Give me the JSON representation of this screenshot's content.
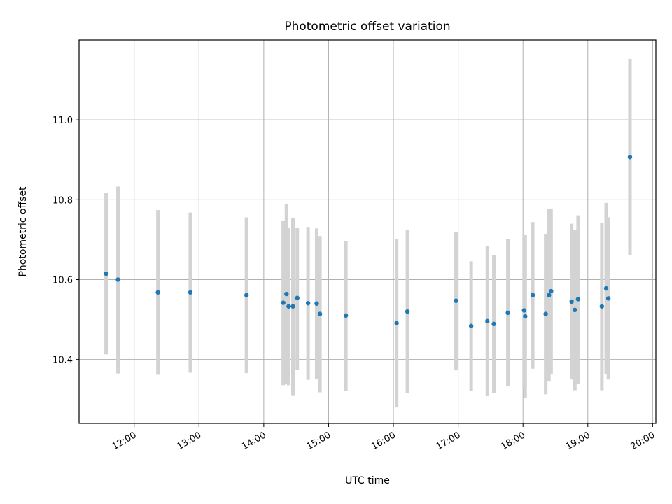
{
  "chart_data": {
    "type": "scatter",
    "title": "Photometric offset variation",
    "xlabel": "UTC time",
    "ylabel": "Photometric offset",
    "grid": true,
    "xlim": [
      "11:09",
      "20:03"
    ],
    "ylim": [
      10.24,
      11.2
    ],
    "x_ticks": [
      "12:00",
      "13:00",
      "14:00",
      "15:00",
      "16:00",
      "17:00",
      "18:00",
      "19:00",
      "20:00"
    ],
    "y_ticks": [
      10.4,
      10.6,
      10.8,
      11.0
    ],
    "y_tick_labels": [
      "10.4",
      "10.6",
      "10.8",
      "11.0"
    ],
    "colors": {
      "points": "#1f77b4",
      "errorbars": "#d3d3d3",
      "grid": "#b0b0b0"
    },
    "series": [
      {
        "points": [
          {
            "x": "11:34",
            "y": 10.615,
            "lo": 10.413,
            "hi": 10.817
          },
          {
            "x": "11:45",
            "y": 10.6,
            "lo": 10.365,
            "hi": 10.833
          },
          {
            "x": "12:22",
            "y": 10.568,
            "lo": 10.362,
            "hi": 10.774
          },
          {
            "x": "12:52",
            "y": 10.568,
            "lo": 10.367,
            "hi": 10.768
          },
          {
            "x": "13:44",
            "y": 10.561,
            "lo": 10.366,
            "hi": 10.756
          },
          {
            "x": "14:18",
            "y": 10.542,
            "lo": 10.336,
            "hi": 10.747
          },
          {
            "x": "14:21",
            "y": 10.564,
            "lo": 10.338,
            "hi": 10.789
          },
          {
            "x": "14:23",
            "y": 10.533,
            "lo": 10.336,
            "hi": 10.73
          },
          {
            "x": "14:27",
            "y": 10.533,
            "lo": 10.309,
            "hi": 10.754
          },
          {
            "x": "14:31",
            "y": 10.554,
            "lo": 10.375,
            "hi": 10.73
          },
          {
            "x": "14:41",
            "y": 10.541,
            "lo": 10.349,
            "hi": 10.732
          },
          {
            "x": "14:49",
            "y": 10.54,
            "lo": 10.352,
            "hi": 10.728
          },
          {
            "x": "14:52",
            "y": 10.514,
            "lo": 10.318,
            "hi": 10.709
          },
          {
            "x": "15:16",
            "y": 10.51,
            "lo": 10.322,
            "hi": 10.697
          },
          {
            "x": "16:03",
            "y": 10.491,
            "lo": 10.28,
            "hi": 10.701
          },
          {
            "x": "16:13",
            "y": 10.52,
            "lo": 10.317,
            "hi": 10.724
          },
          {
            "x": "16:58",
            "y": 10.547,
            "lo": 10.373,
            "hi": 10.72
          },
          {
            "x": "17:12",
            "y": 10.484,
            "lo": 10.322,
            "hi": 10.646
          },
          {
            "x": "17:27",
            "y": 10.496,
            "lo": 10.308,
            "hi": 10.684
          },
          {
            "x": "17:33",
            "y": 10.489,
            "lo": 10.317,
            "hi": 10.661
          },
          {
            "x": "17:46",
            "y": 10.517,
            "lo": 10.333,
            "hi": 10.701
          },
          {
            "x": "18:01",
            "y": 10.523,
            "lo": 10.332,
            "hi": 10.713
          },
          {
            "x": "18:02",
            "y": 10.508,
            "lo": 10.303,
            "hi": 10.713
          },
          {
            "x": "18:09",
            "y": 10.561,
            "lo": 10.377,
            "hi": 10.744
          },
          {
            "x": "18:21",
            "y": 10.514,
            "lo": 10.313,
            "hi": 10.715
          },
          {
            "x": "18:24",
            "y": 10.561,
            "lo": 10.345,
            "hi": 10.776
          },
          {
            "x": "18:26",
            "y": 10.571,
            "lo": 10.364,
            "hi": 10.778
          },
          {
            "x": "18:45",
            "y": 10.545,
            "lo": 10.35,
            "hi": 10.74
          },
          {
            "x": "18:48",
            "y": 10.524,
            "lo": 10.323,
            "hi": 10.725
          },
          {
            "x": "18:51",
            "y": 10.551,
            "lo": 10.34,
            "hi": 10.761
          },
          {
            "x": "19:13",
            "y": 10.533,
            "lo": 10.323,
            "hi": 10.741
          },
          {
            "x": "19:17",
            "y": 10.578,
            "lo": 10.364,
            "hi": 10.792
          },
          {
            "x": "19:19",
            "y": 10.553,
            "lo": 10.35,
            "hi": 10.756
          },
          {
            "x": "19:39",
            "y": 10.907,
            "lo": 10.662,
            "hi": 11.152
          }
        ]
      }
    ]
  }
}
